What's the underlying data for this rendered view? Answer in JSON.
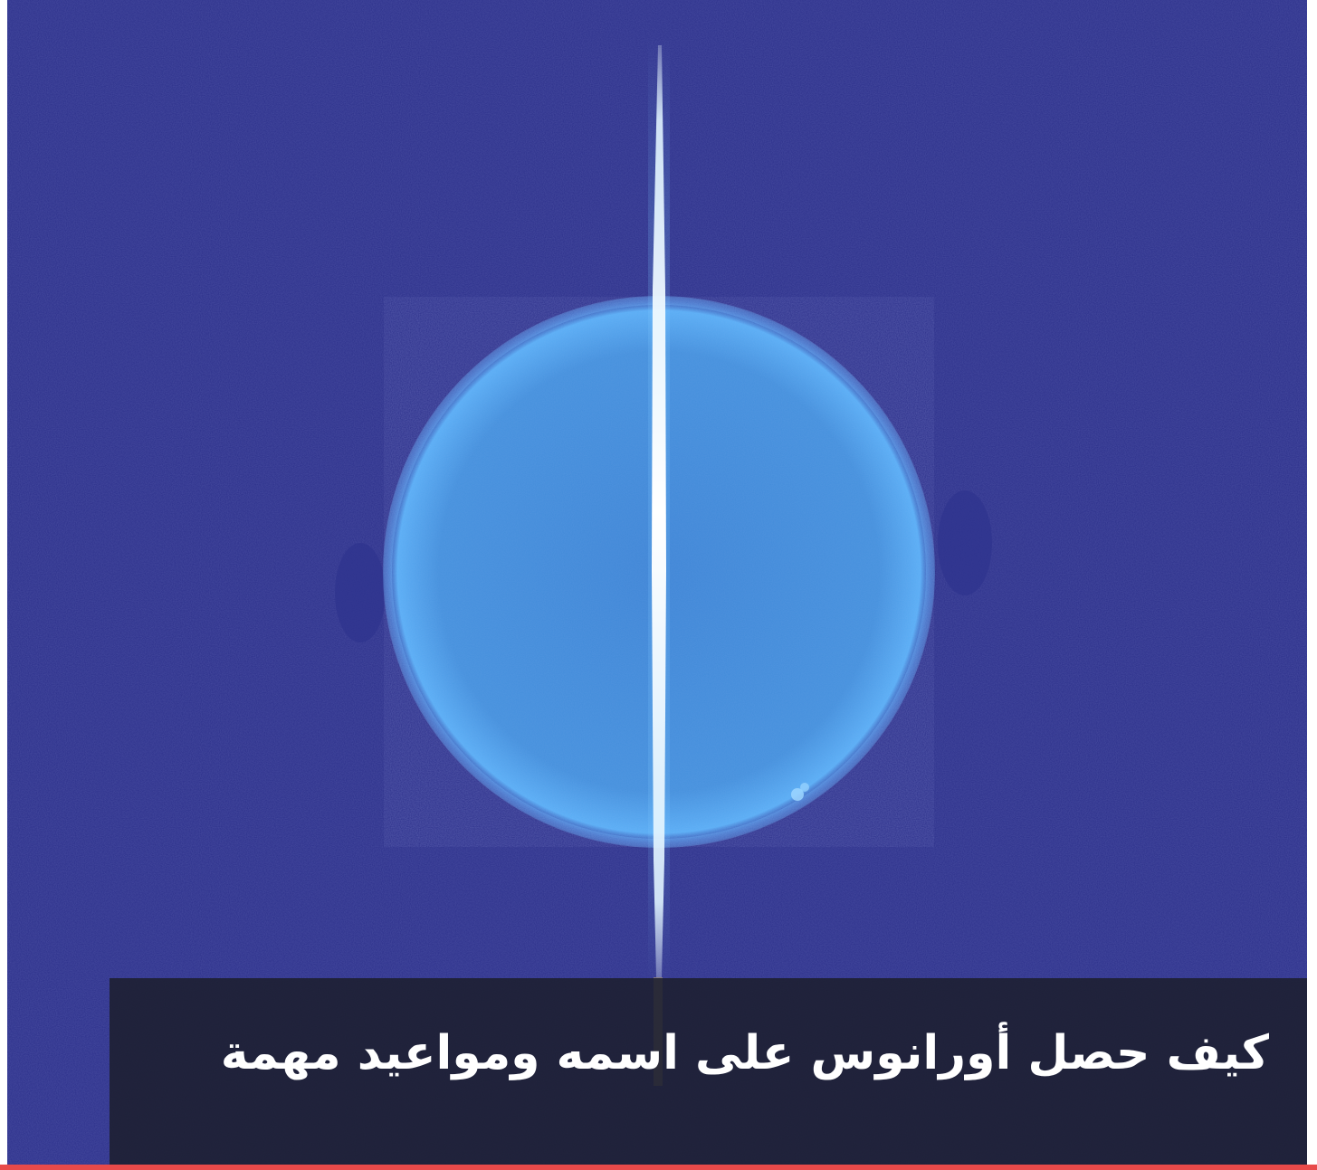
{
  "article": {
    "headline": "كيف حصل أورانوس على اسمه ومواعيد مهمة"
  },
  "image": {
    "subject": "uranus-planet-with-ring",
    "colors": {
      "background": "#2b2f8a",
      "planet_edge": "#4fa4f2",
      "planet_core": "#3f86d6",
      "ring": "#eaf7ff"
    }
  },
  "colors": {
    "caption_band": "#1c1e2c",
    "caption_text": "#ffffff",
    "accent": "#e84a4a"
  }
}
